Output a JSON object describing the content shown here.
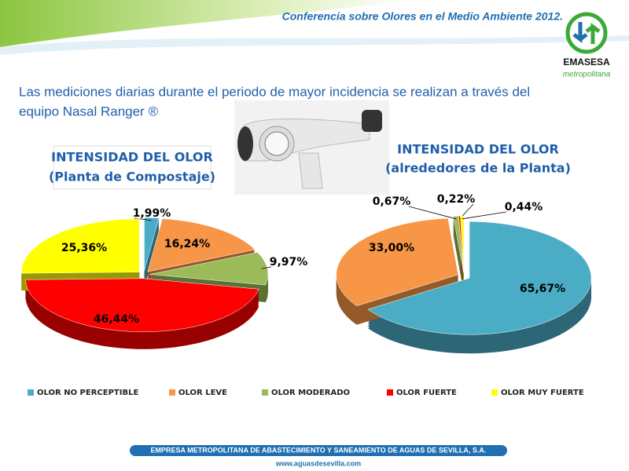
{
  "header": {
    "title": "Conferencia sobre Olores en el Medio Ambiente 2012.",
    "logo": "EMASESA",
    "logo_sub": "metropolitana"
  },
  "body": {
    "text_line1": "Las mediciones diarias durante el periodo de mayor incidencia se realizan a través del",
    "text_line2": "equipo Nasal Ranger ®"
  },
  "chart_data": [
    {
      "type": "pie",
      "title": "INTENSIDAD DEL OLOR",
      "subtitle": "(Planta de Compostaje)",
      "categories": [
        "OLOR NO PERCEPTIBLE",
        "OLOR LEVE",
        "OLOR MODERADO",
        "OLOR FUERTE",
        "OLOR MUY FUERTE"
      ],
      "values": [
        1.99,
        16.24,
        9.97,
        46.44,
        25.36
      ],
      "value_labels": [
        "1,99%",
        "16,24%",
        "9,97%",
        "46,44%",
        "25,36%"
      ],
      "colors": [
        "#4bacc6",
        "#f79646",
        "#9bbb59",
        "#ff0000",
        "#ffff00"
      ]
    },
    {
      "type": "pie",
      "title": "INTENSIDAD DEL OLOR",
      "subtitle": "(alrededores de la Planta)",
      "categories": [
        "OLOR NO PERCEPTIBLE",
        "OLOR LEVE",
        "OLOR MODERADO",
        "OLOR FUERTE",
        "OLOR MUY FUERTE"
      ],
      "values": [
        65.67,
        33.0,
        0.67,
        0.22,
        0.44
      ],
      "value_labels": [
        "65,67%",
        "33,00%",
        "0,67%",
        "0,22%",
        "0,44%"
      ],
      "colors": [
        "#4bacc6",
        "#f79646",
        "#9bbb59",
        "#ff0000",
        "#ffff00"
      ]
    }
  ],
  "footer": {
    "company": "EMPRESA METROPOLITANA DE ABASTECIMIENTO Y SANEAMIENTO DE AGUAS DE SEVILLA, S.A.",
    "url": "www.aguasdesevilla.com"
  }
}
